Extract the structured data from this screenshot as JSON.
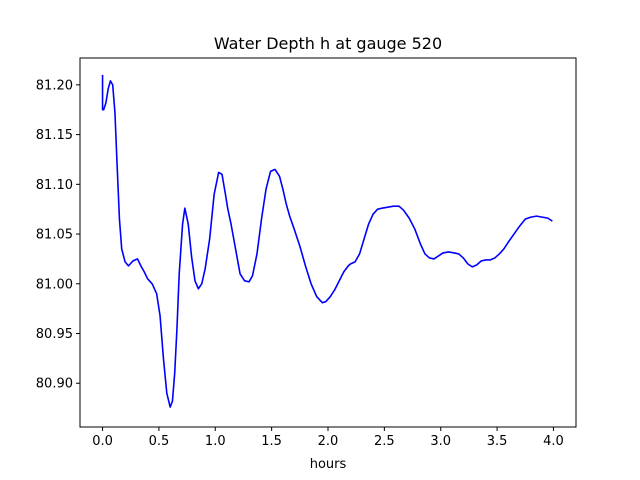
{
  "chart_data": {
    "type": "line",
    "title": "Water Depth h at gauge 520",
    "xlabel": "hours",
    "ylabel": "",
    "xlim": [
      -0.2,
      4.2
    ],
    "ylim": [
      80.856,
      81.227
    ],
    "xticks": [
      0.0,
      0.5,
      1.0,
      1.5,
      2.0,
      2.5,
      3.0,
      3.5,
      4.0
    ],
    "xtick_labels": [
      "0.0",
      "0.5",
      "1.0",
      "1.5",
      "2.0",
      "2.5",
      "3.0",
      "3.5",
      "4.0"
    ],
    "yticks": [
      80.9,
      80.95,
      81.0,
      81.05,
      81.1,
      81.15,
      81.2
    ],
    "ytick_labels": [
      "80.90",
      "80.95",
      "81.00",
      "81.05",
      "81.10",
      "81.15",
      "81.20"
    ],
    "grid": false,
    "legend": "none",
    "series": [
      {
        "color": "#0000ff",
        "x": [
          0.0,
          0.0,
          0.01,
          0.03,
          0.05,
          0.07,
          0.09,
          0.11,
          0.13,
          0.15,
          0.17,
          0.2,
          0.23,
          0.27,
          0.31,
          0.34,
          0.37,
          0.4,
          0.44,
          0.48,
          0.51,
          0.54,
          0.57,
          0.6,
          0.62,
          0.64,
          0.66,
          0.68,
          0.71,
          0.73,
          0.76,
          0.79,
          0.82,
          0.85,
          0.88,
          0.91,
          0.95,
          0.99,
          1.03,
          1.06,
          1.09,
          1.11,
          1.14,
          1.18,
          1.22,
          1.26,
          1.3,
          1.33,
          1.37,
          1.41,
          1.45,
          1.49,
          1.53,
          1.57,
          1.6,
          1.63,
          1.66,
          1.7,
          1.75,
          1.8,
          1.85,
          1.9,
          1.95,
          1.98,
          2.02,
          2.06,
          2.1,
          2.14,
          2.18,
          2.2,
          2.24,
          2.28,
          2.32,
          2.36,
          2.4,
          2.44,
          2.48,
          2.53,
          2.58,
          2.63,
          2.67,
          2.72,
          2.77,
          2.82,
          2.86,
          2.9,
          2.94,
          2.98,
          3.02,
          3.07,
          3.12,
          3.16,
          3.2,
          3.24,
          3.28,
          3.32,
          3.36,
          3.4,
          3.44,
          3.48,
          3.52,
          3.56,
          3.6,
          3.65,
          3.7,
          3.75,
          3.8,
          3.85,
          3.9,
          3.95,
          3.99
        ],
        "y": [
          81.21,
          81.175,
          81.175,
          81.182,
          81.196,
          81.204,
          81.2,
          81.172,
          81.117,
          81.065,
          81.035,
          81.022,
          81.018,
          81.023,
          81.025,
          81.018,
          81.012,
          81.005,
          81.0,
          80.99,
          80.968,
          80.925,
          80.89,
          80.876,
          80.882,
          80.91,
          80.955,
          81.01,
          81.06,
          81.076,
          81.06,
          81.027,
          81.003,
          80.995,
          81.0,
          81.015,
          81.045,
          81.09,
          81.112,
          81.11,
          81.09,
          81.076,
          81.06,
          81.035,
          81.01,
          81.003,
          81.002,
          81.008,
          81.03,
          81.065,
          81.095,
          81.113,
          81.115,
          81.108,
          81.095,
          81.08,
          81.068,
          81.055,
          81.038,
          81.018,
          81.0,
          80.987,
          80.981,
          80.982,
          80.987,
          80.994,
          81.003,
          81.012,
          81.018,
          81.02,
          81.022,
          81.03,
          81.045,
          81.06,
          81.07,
          81.075,
          81.076,
          81.077,
          81.078,
          81.078,
          81.074,
          81.066,
          81.055,
          81.04,
          81.03,
          81.026,
          81.025,
          81.028,
          81.031,
          81.032,
          81.031,
          81.03,
          81.026,
          81.02,
          81.017,
          81.019,
          81.023,
          81.024,
          81.024,
          81.026,
          81.03,
          81.035,
          81.042,
          81.05,
          81.058,
          81.065,
          81.067,
          81.068,
          81.067,
          81.066,
          81.063
        ]
      }
    ]
  }
}
